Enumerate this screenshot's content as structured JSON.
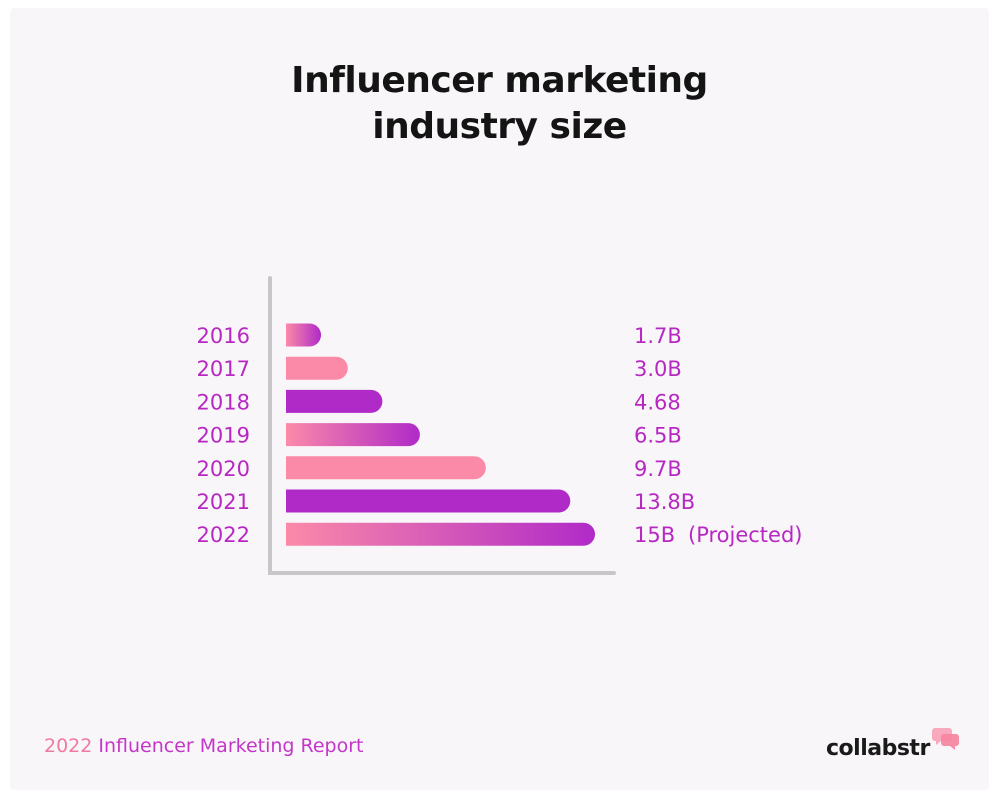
{
  "title_lines": [
    "Influencer marketing",
    "industry size"
  ],
  "footer": {
    "year": "2022",
    "label": "Influencer Marketing Report"
  },
  "logo": {
    "text": "collabstr",
    "icon": "speech-bubbles-icon"
  },
  "colors": {
    "pink": "#fb8aa8",
    "purple": "#b02ac8",
    "label": "#b728c2",
    "axis": "#c9c6ca",
    "title": "#141414"
  },
  "chart_data": {
    "type": "bar",
    "orientation": "horizontal",
    "title": "Influencer marketing industry size",
    "categories": [
      "2016",
      "2017",
      "2018",
      "2019",
      "2020",
      "2021",
      "2022"
    ],
    "values": [
      1.7,
      3.0,
      4.68,
      6.5,
      9.7,
      13.8,
      15
    ],
    "value_labels": [
      "1.7B",
      "3.0B",
      "4.68",
      "6.5B",
      "9.7B",
      "13.8B",
      "15B"
    ],
    "annotations": [
      "",
      "",
      "",
      "",
      "",
      "",
      "(Projected)"
    ],
    "bar_styles": [
      "gradient",
      "pink",
      "purple",
      "gradient",
      "pink",
      "purple",
      "gradient"
    ],
    "xlim": [
      0,
      15
    ],
    "grid": false,
    "legend": "none",
    "xlabel": "",
    "ylabel": ""
  }
}
